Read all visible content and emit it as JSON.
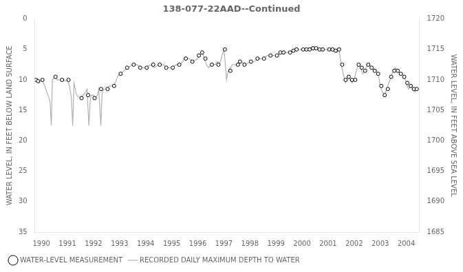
{
  "chart_data": {
    "type": "line",
    "title": "138-077-22AAD--Continued",
    "ylabel": "WATER LEVEL, IN FEET BELOW LAND SURFACE",
    "y2label": "WATER LEVEL, IN FEET ABOVE SEA LEVEL",
    "xlim": [
      1989.75,
      2004.5
    ],
    "xticks": [
      1990,
      1991,
      1992,
      1993,
      1994,
      1995,
      1996,
      1997,
      1998,
      1999,
      2000,
      2001,
      2002,
      2003,
      2004
    ],
    "ylim": [
      35,
      0
    ],
    "yticks": [
      0,
      5,
      10,
      15,
      20,
      25,
      30,
      35
    ],
    "y2lim": [
      1685,
      1720
    ],
    "y2ticks": [
      1685,
      1690,
      1695,
      1700,
      1705,
      1710,
      1715,
      1720
    ],
    "grid": false,
    "legend": "lower left",
    "series": [
      {
        "name": "RECORDED DAILY MAXIMUM DEPTH TO WATER",
        "type": "line",
        "color": "#b0b0b0",
        "line_style": "solid",
        "x": [
          1989.75,
          1989.83,
          1989.92,
          1990.0,
          1990.08,
          1990.17,
          1990.25,
          1990.33,
          1990.38,
          1990.42,
          1990.5,
          1990.6,
          1990.75,
          1990.83,
          1990.92,
          1991.0,
          1991.08,
          1991.15,
          1991.2,
          1991.25,
          1991.35,
          1991.5,
          1991.6,
          1991.7,
          1991.75,
          1991.82,
          1991.88,
          1991.92,
          1992.0,
          1992.08,
          1992.15,
          1992.2,
          1992.28,
          1992.33,
          1992.42,
          1992.5,
          1992.6,
          1992.7,
          1992.83,
          1992.92,
          1993.0,
          1993.17,
          1993.33,
          1993.5,
          1993.67,
          1993.83,
          1994.0,
          1994.17,
          1994.33,
          1994.5,
          1994.67,
          1994.83,
          1995.0,
          1995.17,
          1995.33,
          1995.5,
          1995.67,
          1995.83,
          1996.0,
          1996.08,
          1996.17,
          1996.25,
          1996.33,
          1996.42,
          1996.5,
          1996.58,
          1996.67,
          1996.75,
          1996.83,
          1997.0,
          1997.05,
          1997.1,
          1997.17,
          1997.25,
          1997.33,
          1997.42,
          1997.5,
          1997.67,
          1997.83,
          1998.0,
          1998.17,
          1998.33,
          1998.5,
          1998.67,
          1998.83,
          1999.0,
          1999.17,
          1999.33,
          1999.5,
          1999.67,
          1999.83,
          2000.0,
          2000.17,
          2000.33,
          2000.5,
          2000.67,
          2000.83,
          2001.0,
          2001.08,
          2001.17,
          2001.25,
          2001.33,
          2001.42,
          2001.5,
          2001.58,
          2001.67,
          2001.75,
          2001.83,
          2001.92,
          2002.0,
          2002.08,
          2002.17,
          2002.25,
          2002.33,
          2002.42,
          2002.5,
          2002.58,
          2002.67,
          2002.75,
          2002.83,
          2002.92,
          2003.0,
          2003.08,
          2003.17,
          2003.25,
          2003.33,
          2003.42,
          2003.5,
          2003.58,
          2003.67,
          2003.75,
          2003.83,
          2003.92,
          2004.0,
          2004.08,
          2004.17,
          2004.25,
          2004.33,
          2004.4
        ],
        "values": [
          10.0,
          9.8,
          10.5,
          10.0,
          10.5,
          11.5,
          12.5,
          13.5,
          17.5,
          10.0,
          9.5,
          10.0,
          10.0,
          9.8,
          10.2,
          10.0,
          11.0,
          13.0,
          17.5,
          10.5,
          12.5,
          13.0,
          12.5,
          12.0,
          11.5,
          17.5,
          13.0,
          12.5,
          12.5,
          13.0,
          12.5,
          11.5,
          17.5,
          12.0,
          11.5,
          11.5,
          11.0,
          11.0,
          10.5,
          9.5,
          9.0,
          8.5,
          8.0,
          7.5,
          7.5,
          8.0,
          8.0,
          7.5,
          8.0,
          7.5,
          7.5,
          8.0,
          8.0,
          7.5,
          7.5,
          6.5,
          6.5,
          7.0,
          6.5,
          6.0,
          5.5,
          6.5,
          7.5,
          8.0,
          7.5,
          7.5,
          7.5,
          7.0,
          7.5,
          5.0,
          7.0,
          10.0,
          8.5,
          8.0,
          7.5,
          7.5,
          7.5,
          7.0,
          7.5,
          7.0,
          7.0,
          6.5,
          6.5,
          6.0,
          6.0,
          6.0,
          5.5,
          5.5,
          5.5,
          5.2,
          5.0,
          5.0,
          5.0,
          4.8,
          4.8,
          5.0,
          5.0,
          5.0,
          5.0,
          5.0,
          5.2,
          5.5,
          5.0,
          7.5,
          9.0,
          10.5,
          9.5,
          10.0,
          10.5,
          10.0,
          8.5,
          7.5,
          8.0,
          9.0,
          8.5,
          7.5,
          7.5,
          8.0,
          8.5,
          8.5,
          9.0,
          11.0,
          12.0,
          12.5,
          11.5,
          10.5,
          9.5,
          8.5,
          8.0,
          8.5,
          9.0,
          9.0,
          9.5,
          10.5,
          11.5,
          11.0,
          11.5,
          12.0,
          11.5
        ]
      },
      {
        "name": "WATER-LEVEL MEASUREMENT",
        "type": "scatter",
        "color": "#000000",
        "marker": "open circle",
        "x": [
          1989.79,
          1989.87,
          1990.04,
          1990.54,
          1990.79,
          1991.04,
          1991.54,
          1991.79,
          1992.04,
          1992.29,
          1992.54,
          1992.79,
          1993.04,
          1993.29,
          1993.54,
          1993.79,
          1994.04,
          1994.29,
          1994.54,
          1994.79,
          1995.04,
          1995.29,
          1995.54,
          1995.79,
          1996.04,
          1996.17,
          1996.29,
          1996.54,
          1996.79,
          1997.04,
          1997.25,
          1997.54,
          1997.62,
          1997.79,
          1998.04,
          1998.29,
          1998.54,
          1998.79,
          1999.04,
          1999.17,
          1999.29,
          1999.54,
          1999.67,
          1999.79,
          2000.04,
          2000.17,
          2000.29,
          2000.42,
          2000.54,
          2000.67,
          2000.79,
          2001.04,
          2001.17,
          2001.29,
          2001.42,
          2001.54,
          2001.67,
          2001.79,
          2001.92,
          2002.04,
          2002.17,
          2002.29,
          2002.42,
          2002.54,
          2002.67,
          2002.79,
          2002.92,
          2003.04,
          2003.17,
          2003.29,
          2003.42,
          2003.54,
          2003.67,
          2003.79,
          2003.92,
          2004.04,
          2004.17,
          2004.29,
          2004.4
        ],
        "values": [
          10.0,
          10.2,
          10.0,
          9.5,
          10.0,
          10.0,
          13.0,
          12.5,
          13.0,
          11.5,
          11.5,
          11.0,
          9.0,
          8.0,
          7.5,
          8.0,
          8.0,
          7.5,
          7.5,
          8.0,
          8.0,
          7.5,
          6.5,
          7.0,
          6.0,
          5.5,
          6.5,
          7.5,
          7.5,
          5.0,
          8.5,
          7.5,
          7.0,
          7.5,
          7.0,
          6.5,
          6.5,
          6.0,
          6.0,
          5.5,
          5.5,
          5.5,
          5.2,
          5.0,
          5.0,
          5.0,
          5.0,
          4.8,
          4.8,
          5.0,
          5.0,
          5.0,
          5.0,
          5.2,
          5.0,
          7.5,
          10.0,
          9.5,
          10.0,
          10.0,
          7.5,
          8.0,
          8.5,
          7.5,
          8.0,
          8.5,
          9.0,
          11.0,
          12.5,
          11.5,
          9.5,
          8.5,
          8.5,
          9.0,
          9.5,
          10.5,
          11.0,
          11.5,
          11.5
        ]
      }
    ]
  }
}
